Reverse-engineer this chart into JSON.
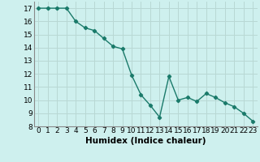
{
  "x": [
    0,
    1,
    2,
    3,
    4,
    5,
    6,
    7,
    8,
    9,
    10,
    11,
    12,
    13,
    14,
    15,
    16,
    17,
    18,
    19,
    20,
    21,
    22,
    23
  ],
  "y": [
    17,
    17,
    17,
    17,
    16,
    15.5,
    15.3,
    14.7,
    14.1,
    13.9,
    11.9,
    10.4,
    9.6,
    8.7,
    11.8,
    10.0,
    10.2,
    9.9,
    10.5,
    10.2,
    9.8,
    9.5,
    9.0,
    8.4
  ],
  "line_color": "#1a7a6a",
  "marker": "D",
  "marker_size": 2.2,
  "background_color": "#cef0ee",
  "grid_color": "#b8d8d4",
  "xlabel": "Humidex (Indice chaleur)",
  "xlim": [
    -0.5,
    23.5
  ],
  "ylim": [
    8,
    17.5
  ],
  "yticks": [
    8,
    9,
    10,
    11,
    12,
    13,
    14,
    15,
    16,
    17
  ],
  "xticks": [
    0,
    1,
    2,
    3,
    4,
    5,
    6,
    7,
    8,
    9,
    10,
    11,
    12,
    13,
    14,
    15,
    16,
    17,
    18,
    19,
    20,
    21,
    22,
    23
  ],
  "tick_label_fontsize": 6.5,
  "xlabel_fontsize": 7.5,
  "line_width": 1.0
}
